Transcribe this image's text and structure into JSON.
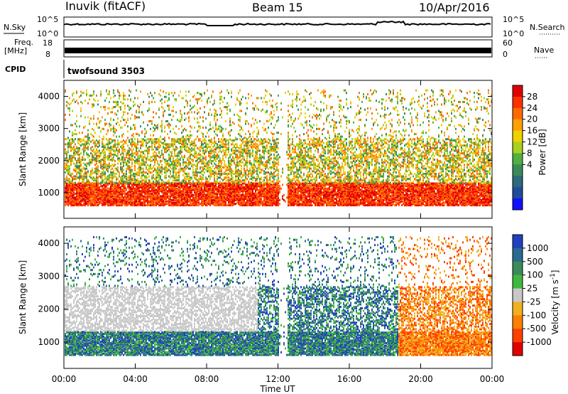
{
  "header": {
    "station": "Inuvik (fitACF)",
    "beam": "Beam 15",
    "date": "10/Apr/2016"
  },
  "top_panels": {
    "nsky_label": "N.Sky",
    "nsearch_label": "N.Search",
    "nsky_ticks": [
      "10^5",
      "10^0"
    ],
    "nsearch_ticks": [
      "10^5",
      "10^0"
    ],
    "freq_label_line1": "Freq.",
    "freq_label_line2": "[MHz]",
    "freq_ticks": [
      "18",
      "8"
    ],
    "nave_label": "Nave",
    "nave_ticks": [
      "60",
      "0"
    ],
    "cpid_label": "CPID",
    "cpid_value": "twofsound 3503"
  },
  "chart_data": [
    {
      "type": "heatmap",
      "name": "power-panel",
      "ylabel": "Slant Range [km]",
      "xlabel": "",
      "ylim": [
        200,
        4500
      ],
      "yticks": [
        1000,
        2000,
        3000,
        4000
      ],
      "x_ticks": [
        "00:00",
        "04:00",
        "08:00",
        "12:00",
        "16:00",
        "20:00",
        "00:00"
      ],
      "colorbar": {
        "label": "Power [dB]",
        "ticks": [
          "28",
          "24",
          "20",
          "16",
          "12",
          "8",
          "4"
        ],
        "colors": [
          "#e00000",
          "#ff3000",
          "#ff6a00",
          "#ffa000",
          "#f0d000",
          "#a8d020",
          "#50b040",
          "#3a8a5a",
          "#2a6a7a",
          "#204a9a",
          "#1010ff"
        ]
      }
    },
    {
      "type": "heatmap",
      "name": "velocity-panel",
      "ylabel": "Slant Range [km]",
      "xlabel": "Time UT",
      "ylim": [
        200,
        4500
      ],
      "yticks": [
        1000,
        2000,
        3000,
        4000
      ],
      "x_ticks": [
        "00:00",
        "04:00",
        "08:00",
        "12:00",
        "16:00",
        "20:00",
        "00:00"
      ],
      "colorbar": {
        "label": "Velocity [m s",
        "label_sup": "-1",
        "label_end": "]",
        "ticks": [
          "1000",
          "500",
          "100",
          "25",
          "-25",
          "-100",
          "-500",
          "-1000"
        ],
        "colors": [
          "#2040c0",
          "#2a6a90",
          "#3a8a5a",
          "#40b840",
          "#c8c8c8",
          "#f0b020",
          "#ff8000",
          "#ff4000",
          "#e00000"
        ]
      }
    }
  ]
}
